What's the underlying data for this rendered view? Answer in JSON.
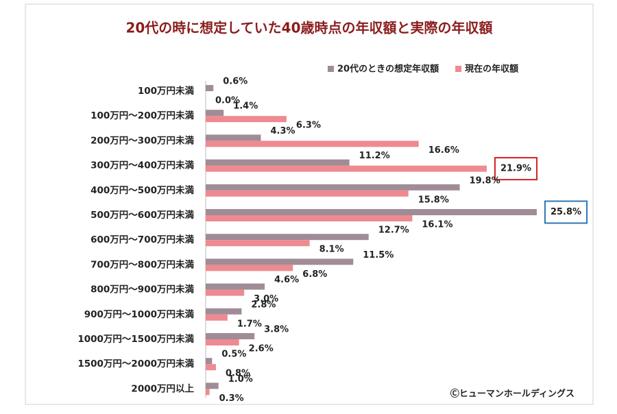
{
  "chart_data": {
    "type": "bar",
    "orientation": "horizontal",
    "title": "20代の時に想定していた40歳時点の年収額と実際の年収額",
    "source": "Ⓒヒューマンホールディングス",
    "categories": [
      "100万円未満",
      "100万円～200万円未満",
      "200万円～300万円未満",
      "300万円～400万円未満",
      "400万円～500万円未満",
      "500万円～600万円未満",
      "600万円～700万円未満",
      "700万円～800万円未満",
      "800万円～900万円未満",
      "900万円～1000万円未満",
      "1000万円～1500万円未満",
      "1500万円～2000万円未満",
      "2000万円以上"
    ],
    "series": [
      {
        "name": "20代のときの想定年収額",
        "color": "#a08c96",
        "values": [
          0.6,
          1.4,
          4.3,
          11.2,
          19.8,
          25.8,
          12.7,
          11.5,
          4.6,
          2.8,
          3.8,
          0.5,
          1.0
        ],
        "value_labels": [
          "0.6%",
          "1.4%",
          "4.3%",
          "11.2%",
          "19.8%",
          "25.8%",
          "12.7%",
          "11.5%",
          "4.6%",
          "2.8%",
          "3.8%",
          "0.5%",
          "1.0%"
        ]
      },
      {
        "name": "現在の年収額",
        "color": "#ee8a91",
        "values": [
          0.0,
          6.3,
          16.6,
          21.9,
          15.8,
          16.1,
          8.1,
          6.8,
          3.0,
          1.7,
          2.6,
          0.8,
          0.3
        ],
        "value_labels": [
          "0.0%",
          "6.3%",
          "16.6%",
          "21.9%",
          "15.8%",
          "16.1%",
          "8.1%",
          "6.8%",
          "3.0%",
          "1.7%",
          "2.6%",
          "0.8%",
          "0.3%"
        ]
      }
    ],
    "highlights": [
      {
        "series": 1,
        "index": 3,
        "color": "#d42020"
      },
      {
        "series": 0,
        "index": 5,
        "color": "#2e75b6"
      }
    ],
    "legend": "top-right"
  }
}
